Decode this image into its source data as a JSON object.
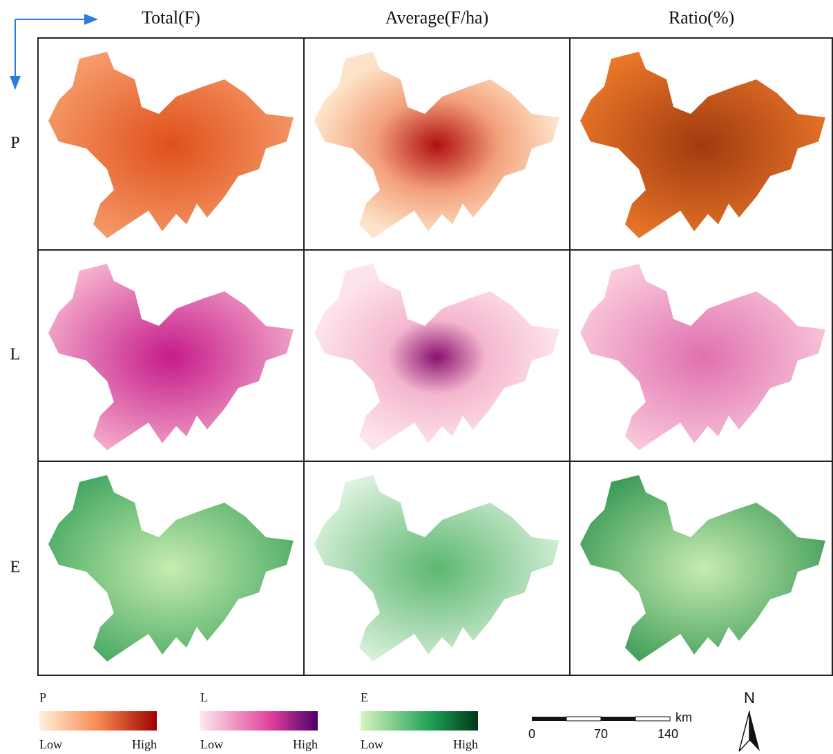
{
  "columns": [
    "Total(F)",
    "Average(F/ha)",
    "Ratio(%)"
  ],
  "rows": [
    "P",
    "L",
    "E"
  ],
  "legends": [
    {
      "label": "P",
      "low": "Low",
      "high": "High"
    },
    {
      "label": "L",
      "low": "Low",
      "high": "High"
    },
    {
      "label": "E",
      "low": "Low",
      "high": "High"
    }
  ],
  "scale_bar": {
    "ticks": [
      0,
      70,
      140
    ],
    "unit": "km"
  },
  "north": "N"
}
